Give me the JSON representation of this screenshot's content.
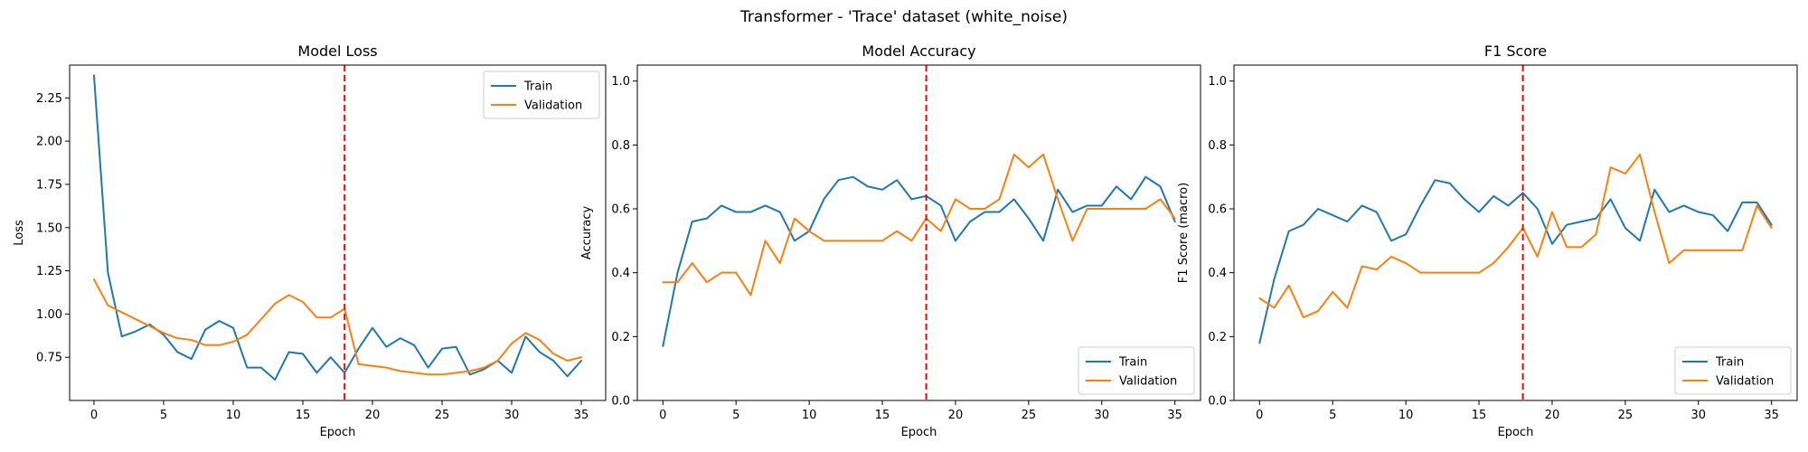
{
  "suptitle": "Transformer - 'Trace' dataset (white_noise)",
  "colors": {
    "train": "#1f77b4",
    "validation": "#ff7f0e",
    "marker": "#ff0000"
  },
  "chart_data": [
    {
      "type": "line",
      "title": "Model Loss",
      "xlabel": "Epoch",
      "ylabel": "Loss",
      "xlim": [
        -1.75,
        36.75
      ],
      "ylim": [
        0.5,
        2.44
      ],
      "xticks": [
        0,
        5,
        10,
        15,
        20,
        25,
        30,
        35
      ],
      "yticks": [
        0.75,
        1.0,
        1.25,
        1.5,
        1.75,
        2.0,
        2.25
      ],
      "ytick_labels": [
        "0.75",
        "1.00",
        "1.25",
        "1.50",
        "1.75",
        "2.00",
        "2.25"
      ],
      "vline": 18,
      "legend": "upper right",
      "x": [
        0,
        1,
        2,
        3,
        4,
        5,
        6,
        7,
        8,
        9,
        10,
        11,
        12,
        13,
        14,
        15,
        16,
        17,
        18,
        19,
        20,
        21,
        22,
        23,
        24,
        25,
        26,
        27,
        28,
        29,
        30,
        31,
        32,
        33,
        34,
        35
      ],
      "series": [
        {
          "name": "Train",
          "color": "#1f77b4",
          "values": [
            2.38,
            1.24,
            0.87,
            0.9,
            0.94,
            0.88,
            0.78,
            0.74,
            0.91,
            0.96,
            0.92,
            0.69,
            0.69,
            0.62,
            0.78,
            0.77,
            0.66,
            0.75,
            0.66,
            0.8,
            0.92,
            0.81,
            0.86,
            0.82,
            0.69,
            0.8,
            0.81,
            0.65,
            0.68,
            0.73,
            0.66,
            0.87,
            0.78,
            0.73,
            0.64,
            0.73
          ]
        },
        {
          "name": "Validation",
          "color": "#ff7f0e",
          "values": [
            1.2,
            1.05,
            1.01,
            0.97,
            0.93,
            0.89,
            0.86,
            0.85,
            0.82,
            0.82,
            0.84,
            0.88,
            0.97,
            1.06,
            1.11,
            1.07,
            0.98,
            0.98,
            1.03,
            0.71,
            0.7,
            0.69,
            0.67,
            0.66,
            0.65,
            0.65,
            0.66,
            0.67,
            0.69,
            0.73,
            0.83,
            0.89,
            0.85,
            0.77,
            0.73,
            0.75
          ]
        }
      ]
    },
    {
      "type": "line",
      "title": "Model Accuracy",
      "xlabel": "Epoch",
      "ylabel": "Accuracy",
      "xlim": [
        -1.75,
        36.75
      ],
      "ylim": [
        0,
        1.05
      ],
      "xticks": [
        0,
        5,
        10,
        15,
        20,
        25,
        30,
        35
      ],
      "yticks": [
        0.0,
        0.2,
        0.4,
        0.6,
        0.8,
        1.0
      ],
      "ytick_labels": [
        "0.0",
        "0.2",
        "0.4",
        "0.6",
        "0.8",
        "1.0"
      ],
      "vline": 18,
      "legend": "lower right",
      "x": [
        0,
        1,
        2,
        3,
        4,
        5,
        6,
        7,
        8,
        9,
        10,
        11,
        12,
        13,
        14,
        15,
        16,
        17,
        18,
        19,
        20,
        21,
        22,
        23,
        24,
        25,
        26,
        27,
        28,
        29,
        30,
        31,
        32,
        33,
        34,
        35
      ],
      "series": [
        {
          "name": "Train",
          "color": "#1f77b4",
          "values": [
            0.17,
            0.4,
            0.56,
            0.57,
            0.61,
            0.59,
            0.59,
            0.61,
            0.59,
            0.5,
            0.53,
            0.63,
            0.69,
            0.7,
            0.67,
            0.66,
            0.69,
            0.63,
            0.64,
            0.61,
            0.5,
            0.56,
            0.59,
            0.59,
            0.63,
            0.57,
            0.5,
            0.66,
            0.59,
            0.61,
            0.61,
            0.67,
            0.63,
            0.7,
            0.67,
            0.56
          ]
        },
        {
          "name": "Validation",
          "color": "#ff7f0e",
          "values": [
            0.37,
            0.37,
            0.43,
            0.37,
            0.4,
            0.4,
            0.33,
            0.5,
            0.43,
            0.57,
            0.53,
            0.5,
            0.5,
            0.5,
            0.5,
            0.5,
            0.53,
            0.5,
            0.57,
            0.53,
            0.63,
            0.6,
            0.6,
            0.63,
            0.77,
            0.73,
            0.77,
            0.63,
            0.5,
            0.6,
            0.6,
            0.6,
            0.6,
            0.6,
            0.63,
            0.57
          ]
        }
      ]
    },
    {
      "type": "line",
      "title": "F1 Score",
      "xlabel": "Epoch",
      "ylabel": "F1 Score (macro)",
      "xlim": [
        -1.75,
        36.75
      ],
      "ylim": [
        0,
        1.05
      ],
      "xticks": [
        0,
        5,
        10,
        15,
        20,
        25,
        30,
        35
      ],
      "yticks": [
        0.0,
        0.2,
        0.4,
        0.6,
        0.8,
        1.0
      ],
      "ytick_labels": [
        "0.0",
        "0.2",
        "0.4",
        "0.6",
        "0.8",
        "1.0"
      ],
      "vline": 18,
      "legend": "lower right",
      "x": [
        0,
        1,
        2,
        3,
        4,
        5,
        6,
        7,
        8,
        9,
        10,
        11,
        12,
        13,
        14,
        15,
        16,
        17,
        18,
        19,
        20,
        21,
        22,
        23,
        24,
        25,
        26,
        27,
        28,
        29,
        30,
        31,
        32,
        33,
        34,
        35
      ],
      "series": [
        {
          "name": "Train",
          "color": "#1f77b4",
          "values": [
            0.18,
            0.38,
            0.53,
            0.55,
            0.6,
            0.58,
            0.56,
            0.61,
            0.59,
            0.5,
            0.52,
            0.61,
            0.69,
            0.68,
            0.63,
            0.59,
            0.64,
            0.61,
            0.65,
            0.6,
            0.49,
            0.55,
            0.56,
            0.57,
            0.63,
            0.54,
            0.5,
            0.66,
            0.59,
            0.61,
            0.59,
            0.58,
            0.53,
            0.62,
            0.62,
            0.55
          ]
        },
        {
          "name": "Validation",
          "color": "#ff7f0e",
          "values": [
            0.32,
            0.29,
            0.36,
            0.26,
            0.28,
            0.34,
            0.29,
            0.42,
            0.41,
            0.45,
            0.43,
            0.4,
            0.4,
            0.4,
            0.4,
            0.4,
            0.43,
            0.48,
            0.54,
            0.45,
            0.59,
            0.48,
            0.48,
            0.52,
            0.73,
            0.71,
            0.77,
            0.59,
            0.43,
            0.47,
            0.47,
            0.47,
            0.47,
            0.47,
            0.61,
            0.54
          ]
        }
      ]
    }
  ]
}
